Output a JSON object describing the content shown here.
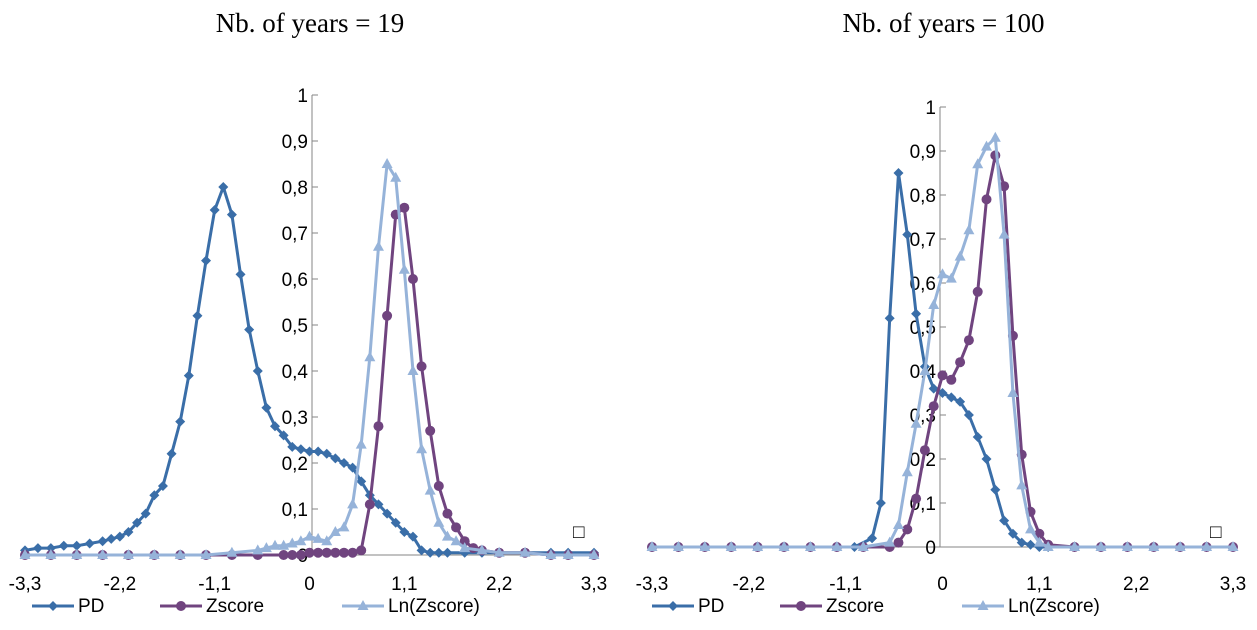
{
  "chart_data": [
    {
      "type": "line",
      "title": "Nb. of years = 19",
      "xlabel": "",
      "ylabel": "",
      "xlim": [
        -3.3,
        3.3
      ],
      "ylim": [
        0,
        1
      ],
      "x_ticks": [
        "-3,3",
        "-2,2",
        "-1,1",
        "0",
        "1,1",
        "2,2",
        "3,3"
      ],
      "y_ticks": [
        "0",
        "0,1",
        "0,2",
        "0,3",
        "0,4",
        "0,5",
        "0,6",
        "0,7",
        "0,8",
        "0,9",
        "1"
      ],
      "legend_position": "bottom",
      "series": [
        {
          "name": "PD",
          "color": "#3A6EA8",
          "marker": "diamond",
          "x": [
            -3.3,
            -3.15,
            -3.0,
            -2.85,
            -2.7,
            -2.55,
            -2.4,
            -2.3,
            -2.2,
            -2.1,
            -2.0,
            -1.9,
            -1.8,
            -1.7,
            -1.6,
            -1.5,
            -1.4,
            -1.3,
            -1.2,
            -1.1,
            -1.0,
            -0.9,
            -0.8,
            -0.7,
            -0.6,
            -0.5,
            -0.4,
            -0.3,
            -0.2,
            -0.1,
            0.0,
            0.1,
            0.2,
            0.3,
            0.4,
            0.5,
            0.6,
            0.7,
            0.8,
            0.9,
            1.0,
            1.1,
            1.2,
            1.3,
            1.4,
            1.5,
            1.6,
            1.8,
            2.0,
            2.2,
            2.5,
            2.8,
            3.0,
            3.3
          ],
          "y": [
            0.01,
            0.015,
            0.015,
            0.02,
            0.02,
            0.025,
            0.03,
            0.035,
            0.04,
            0.05,
            0.07,
            0.09,
            0.13,
            0.15,
            0.22,
            0.29,
            0.39,
            0.52,
            0.64,
            0.75,
            0.8,
            0.74,
            0.61,
            0.49,
            0.4,
            0.32,
            0.28,
            0.26,
            0.235,
            0.23,
            0.225,
            0.225,
            0.22,
            0.21,
            0.2,
            0.19,
            0.16,
            0.13,
            0.11,
            0.09,
            0.07,
            0.05,
            0.04,
            0.01,
            0.005,
            0.005,
            0.005,
            0.005,
            0.005,
            0.005,
            0.005,
            0.005,
            0.005,
            0.005
          ]
        },
        {
          "name": "Zscore",
          "color": "#70447F",
          "marker": "circle",
          "x": [
            -3.3,
            -3.0,
            -2.7,
            -2.4,
            -2.1,
            -1.8,
            -1.5,
            -1.2,
            -0.9,
            -0.6,
            -0.3,
            -0.2,
            -0.1,
            0.0,
            0.1,
            0.2,
            0.3,
            0.4,
            0.5,
            0.6,
            0.7,
            0.8,
            0.9,
            1.0,
            1.1,
            1.2,
            1.3,
            1.4,
            1.5,
            1.6,
            1.7,
            1.8,
            1.9,
            2.0,
            2.2,
            2.5,
            2.8,
            3.0,
            3.3
          ],
          "y": [
            0.0,
            0.0,
            0.0,
            0.0,
            0.0,
            0.0,
            0.0,
            0.0,
            0.0,
            0.0,
            0.0,
            0.0,
            0.0,
            0.005,
            0.005,
            0.005,
            0.005,
            0.005,
            0.005,
            0.01,
            0.11,
            0.28,
            0.52,
            0.74,
            0.755,
            0.6,
            0.41,
            0.27,
            0.15,
            0.09,
            0.06,
            0.03,
            0.015,
            0.01,
            0.005,
            0.005,
            0.0,
            0.0,
            0.0
          ]
        },
        {
          "name": "Ln(Zscore)",
          "color": "#96B3D9",
          "marker": "triangle",
          "x": [
            -3.3,
            -3.0,
            -2.7,
            -2.4,
            -2.1,
            -1.8,
            -1.5,
            -1.2,
            -0.9,
            -0.6,
            -0.5,
            -0.4,
            -0.3,
            -0.2,
            -0.1,
            0.0,
            0.1,
            0.2,
            0.3,
            0.4,
            0.5,
            0.6,
            0.7,
            0.8,
            0.9,
            1.0,
            1.1,
            1.2,
            1.3,
            1.4,
            1.5,
            1.6,
            1.7,
            1.8,
            2.0,
            2.2,
            2.5,
            2.8,
            3.0,
            3.3
          ],
          "y": [
            0.0,
            0.0,
            0.0,
            0.0,
            0.0,
            0.0,
            0.0,
            0.0,
            0.005,
            0.01,
            0.015,
            0.02,
            0.02,
            0.025,
            0.03,
            0.04,
            0.035,
            0.03,
            0.05,
            0.06,
            0.11,
            0.24,
            0.43,
            0.67,
            0.85,
            0.82,
            0.62,
            0.4,
            0.23,
            0.14,
            0.07,
            0.04,
            0.03,
            0.015,
            0.01,
            0.005,
            0.005,
            0.0,
            0.0,
            0.0
          ]
        }
      ]
    },
    {
      "type": "line",
      "title": "Nb. of years = 100",
      "xlabel": "",
      "ylabel": "",
      "xlim": [
        -3.3,
        3.3
      ],
      "ylim": [
        0,
        1
      ],
      "x_ticks": [
        "-3,3",
        "-2,2",
        "-1,1",
        "0",
        "1,1",
        "2,2",
        "3,3"
      ],
      "y_ticks": [
        "0",
        "0,1",
        "0,2",
        "0,3",
        "0,4",
        "0,5",
        "0,6",
        "0,7",
        "0,8",
        "0,9",
        "1"
      ],
      "legend_position": "bottom",
      "series": [
        {
          "name": "PD",
          "color": "#3A6EA8",
          "marker": "diamond",
          "x": [
            -3.3,
            -3.0,
            -2.7,
            -2.4,
            -2.1,
            -1.8,
            -1.5,
            -1.2,
            -1.0,
            -0.8,
            -0.7,
            -0.6,
            -0.5,
            -0.4,
            -0.3,
            -0.2,
            -0.1,
            0.0,
            0.1,
            0.2,
            0.3,
            0.4,
            0.5,
            0.6,
            0.7,
            0.8,
            0.9,
            1.0,
            1.1,
            1.2,
            1.5,
            1.8,
            2.1,
            2.4,
            2.7,
            3.0,
            3.3
          ],
          "y": [
            0.0,
            0.0,
            0.0,
            0.0,
            0.0,
            0.0,
            0.0,
            0.0,
            0.0,
            0.02,
            0.1,
            0.52,
            0.85,
            0.71,
            0.53,
            0.41,
            0.36,
            0.35,
            0.34,
            0.33,
            0.3,
            0.25,
            0.2,
            0.13,
            0.06,
            0.03,
            0.01,
            0.005,
            0.0,
            0.0,
            0.0,
            0.0,
            0.0,
            0.0,
            0.0,
            0.0,
            0.0
          ]
        },
        {
          "name": "Zscore",
          "color": "#70447F",
          "marker": "circle",
          "x": [
            -3.3,
            -3.0,
            -2.7,
            -2.4,
            -2.1,
            -1.8,
            -1.5,
            -1.2,
            -0.9,
            -0.6,
            -0.5,
            -0.4,
            -0.3,
            -0.2,
            -0.1,
            0.0,
            0.1,
            0.2,
            0.3,
            0.4,
            0.5,
            0.6,
            0.7,
            0.8,
            0.9,
            1.0,
            1.1,
            1.2,
            1.5,
            1.8,
            2.1,
            2.4,
            2.7,
            3.0,
            3.3
          ],
          "y": [
            0.0,
            0.0,
            0.0,
            0.0,
            0.0,
            0.0,
            0.0,
            0.0,
            0.0,
            0.0,
            0.01,
            0.04,
            0.11,
            0.22,
            0.32,
            0.39,
            0.38,
            0.42,
            0.47,
            0.58,
            0.79,
            0.89,
            0.82,
            0.48,
            0.21,
            0.08,
            0.03,
            0.005,
            0.0,
            0.0,
            0.0,
            0.0,
            0.0,
            0.0,
            0.0
          ]
        },
        {
          "name": "Ln(Zscore)",
          "color": "#96B3D9",
          "marker": "triangle",
          "x": [
            -3.3,
            -3.0,
            -2.7,
            -2.4,
            -2.1,
            -1.8,
            -1.5,
            -1.2,
            -0.9,
            -0.6,
            -0.5,
            -0.4,
            -0.3,
            -0.2,
            -0.1,
            0.0,
            0.1,
            0.2,
            0.3,
            0.4,
            0.5,
            0.6,
            0.7,
            0.8,
            0.9,
            1.0,
            1.1,
            1.2,
            1.5,
            1.8,
            2.1,
            2.4,
            2.7,
            3.0,
            3.3
          ],
          "y": [
            0.0,
            0.0,
            0.0,
            0.0,
            0.0,
            0.0,
            0.0,
            0.0,
            0.0,
            0.01,
            0.05,
            0.17,
            0.28,
            0.4,
            0.55,
            0.62,
            0.61,
            0.66,
            0.72,
            0.87,
            0.91,
            0.93,
            0.71,
            0.35,
            0.14,
            0.04,
            0.01,
            0.0,
            0.0,
            0.0,
            0.0,
            0.0,
            0.0,
            0.0,
            0.0
          ]
        }
      ]
    }
  ],
  "legend_marker_label": "□"
}
